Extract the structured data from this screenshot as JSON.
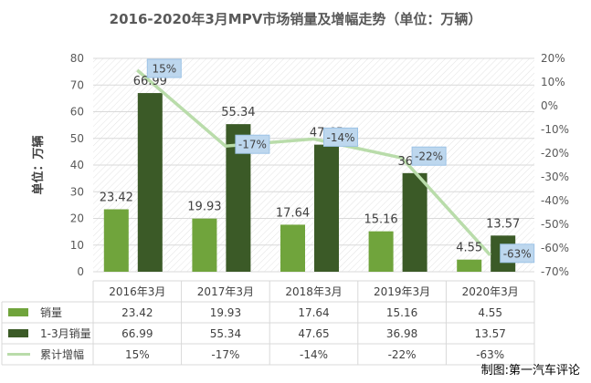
{
  "chart_data": {
    "type": "bar",
    "title": "2016-2020年3月MPV市场销量及增幅走势（单位：万辆）",
    "ylabel": "单位：万辆",
    "categories": [
      "2016年3月",
      "2017年3月",
      "2018年3月",
      "2019年3月",
      "2020年3月"
    ],
    "ylim": [
      0,
      80
    ],
    "yticks": [
      0,
      10,
      20,
      30,
      40,
      50,
      60,
      70,
      80
    ],
    "y2lim": [
      -70,
      20
    ],
    "y2ticks": [
      "-70%",
      "-60%",
      "-50%",
      "-40%",
      "-30%",
      "-20%",
      "-10%",
      "0%",
      "10%",
      "20%"
    ],
    "y2values": [
      -70,
      -60,
      -50,
      -40,
      -30,
      -20,
      -10,
      0,
      10,
      20
    ],
    "series": [
      {
        "name": "销量",
        "kind": "bar",
        "color": "#70a43c",
        "values": [
          23.42,
          19.93,
          17.64,
          15.16,
          4.55
        ],
        "labels": [
          "23.42",
          "19.93",
          "17.64",
          "15.16",
          "4.55"
        ]
      },
      {
        "name": "1-3月销量",
        "kind": "bar",
        "color": "#3b5a27",
        "values": [
          66.99,
          55.34,
          47.65,
          36.98,
          13.57
        ],
        "labels": [
          "66.99",
          "55.34",
          "47.65",
          "36.98",
          "13.57"
        ]
      },
      {
        "name": "累计增幅",
        "kind": "line",
        "axis": "secondary",
        "color": "#b9dcaa",
        "values": [
          15,
          -17,
          -14,
          -22,
          -63
        ],
        "labels": [
          "15%",
          "-17%",
          "-14%",
          "-22%",
          "-63%"
        ]
      }
    ],
    "grid": true,
    "legend": "table-below"
  },
  "credit": "制图:第一汽车评论"
}
